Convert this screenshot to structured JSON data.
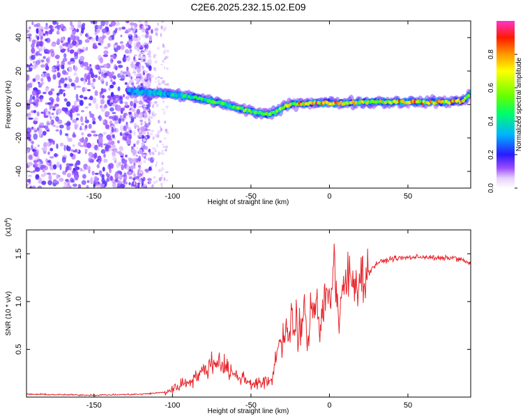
{
  "title": "C2E6.2025.232.15.02.E09",
  "chart_data": [
    {
      "type": "heatmap",
      "xlabel": "Height of straight line (km)",
      "ylabel": "Frequency (Hz)",
      "xlim": [
        -193,
        90
      ],
      "ylim": [
        -50,
        50
      ],
      "xticks": [
        -150,
        -100,
        -50,
        0,
        50
      ],
      "yticks": [
        -40,
        -20,
        0,
        20,
        40
      ],
      "colorbar": {
        "label": "Normalized spectral amplitude",
        "range": [
          0.0,
          1.0
        ],
        "ticks": [
          "0.0",
          "0.2",
          "0.4",
          "0.6",
          "0.8"
        ],
        "tick_values": [
          0.0,
          0.2,
          0.4,
          0.6,
          0.8
        ]
      },
      "ridge": {
        "x": [
          -128,
          -110,
          -100,
          -90,
          -80,
          -70,
          -60,
          -50,
          -40,
          -35,
          -30,
          -25,
          -20,
          -10,
          0,
          10,
          20,
          30,
          50,
          70,
          85,
          90
        ],
        "freq": [
          8,
          7,
          6,
          5,
          3,
          1,
          -2,
          -4,
          -6,
          -5,
          -2,
          0,
          0.5,
          1,
          1,
          1,
          1.5,
          1.5,
          1.5,
          1.5,
          2,
          7
        ],
        "amplitude": [
          0.35,
          0.4,
          0.45,
          0.5,
          0.5,
          0.55,
          0.6,
          0.6,
          0.55,
          0.6,
          0.65,
          0.7,
          0.8,
          0.85,
          0.85,
          0.8,
          0.75,
          0.75,
          0.85,
          0.85,
          0.8,
          0.5
        ]
      }
    },
    {
      "type": "line",
      "xlabel": "Height of straight line (km)",
      "ylabel": "SNR (10 * v/v)",
      "y_multiplier": "(x10",
      "y_multiplier_exp": "4",
      "y_multiplier_close": ")",
      "xlim": [
        -193,
        90
      ],
      "ylim": [
        0,
        1.75
      ],
      "xticks": [
        -150,
        -100,
        -50,
        0,
        50
      ],
      "yticks": [
        0.5,
        1.0,
        1.5
      ],
      "ytick_labels": [
        "0.5",
        "1.0",
        "1.5"
      ],
      "series": [
        {
          "name": "SNR",
          "color": "#e8242a",
          "x": [
            -193,
            -150,
            -120,
            -105,
            -100,
            -95,
            -90,
            -85,
            -80,
            -75,
            -70,
            -65,
            -60,
            -55,
            -50,
            -45,
            -40,
            -36,
            -34,
            -32,
            -30,
            -28,
            -26,
            -24,
            -22,
            -21,
            -20,
            -19,
            -18,
            -16,
            -14,
            -12,
            -10,
            -8,
            -6,
            -4,
            -2,
            0,
            2,
            3,
            4,
            5,
            6,
            8,
            10,
            12,
            15,
            18,
            20,
            25,
            30,
            40,
            50,
            60,
            70,
            80,
            90
          ],
          "y": [
            0.03,
            0.02,
            0.03,
            0.05,
            0.08,
            0.13,
            0.16,
            0.22,
            0.27,
            0.35,
            0.38,
            0.3,
            0.22,
            0.2,
            0.15,
            0.14,
            0.15,
            0.2,
            0.45,
            0.6,
            0.55,
            0.75,
            0.6,
            0.9,
            0.5,
            1.1,
            0.35,
            0.85,
            0.7,
            0.95,
            0.5,
            0.9,
            0.95,
            1.05,
            0.7,
            0.95,
            1.1,
            1.05,
            1.2,
            1.6,
            0.95,
            1.2,
            0.6,
            1.1,
            1.2,
            1.25,
            1.2,
            1.25,
            1.25,
            1.3,
            1.4,
            1.45,
            1.46,
            1.47,
            1.45,
            1.46,
            1.4
          ]
        }
      ]
    }
  ]
}
